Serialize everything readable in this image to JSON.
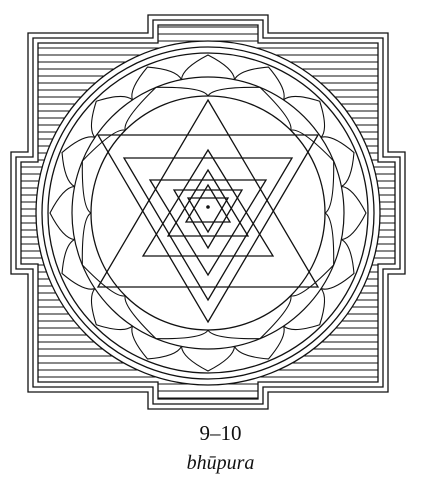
{
  "figure": {
    "number": "9–10",
    "term": "bhūpura"
  },
  "colors": {
    "ink": "#111111",
    "paper": "#ffffff"
  },
  "icons": {
    "diagram": "sri-yantra"
  }
}
